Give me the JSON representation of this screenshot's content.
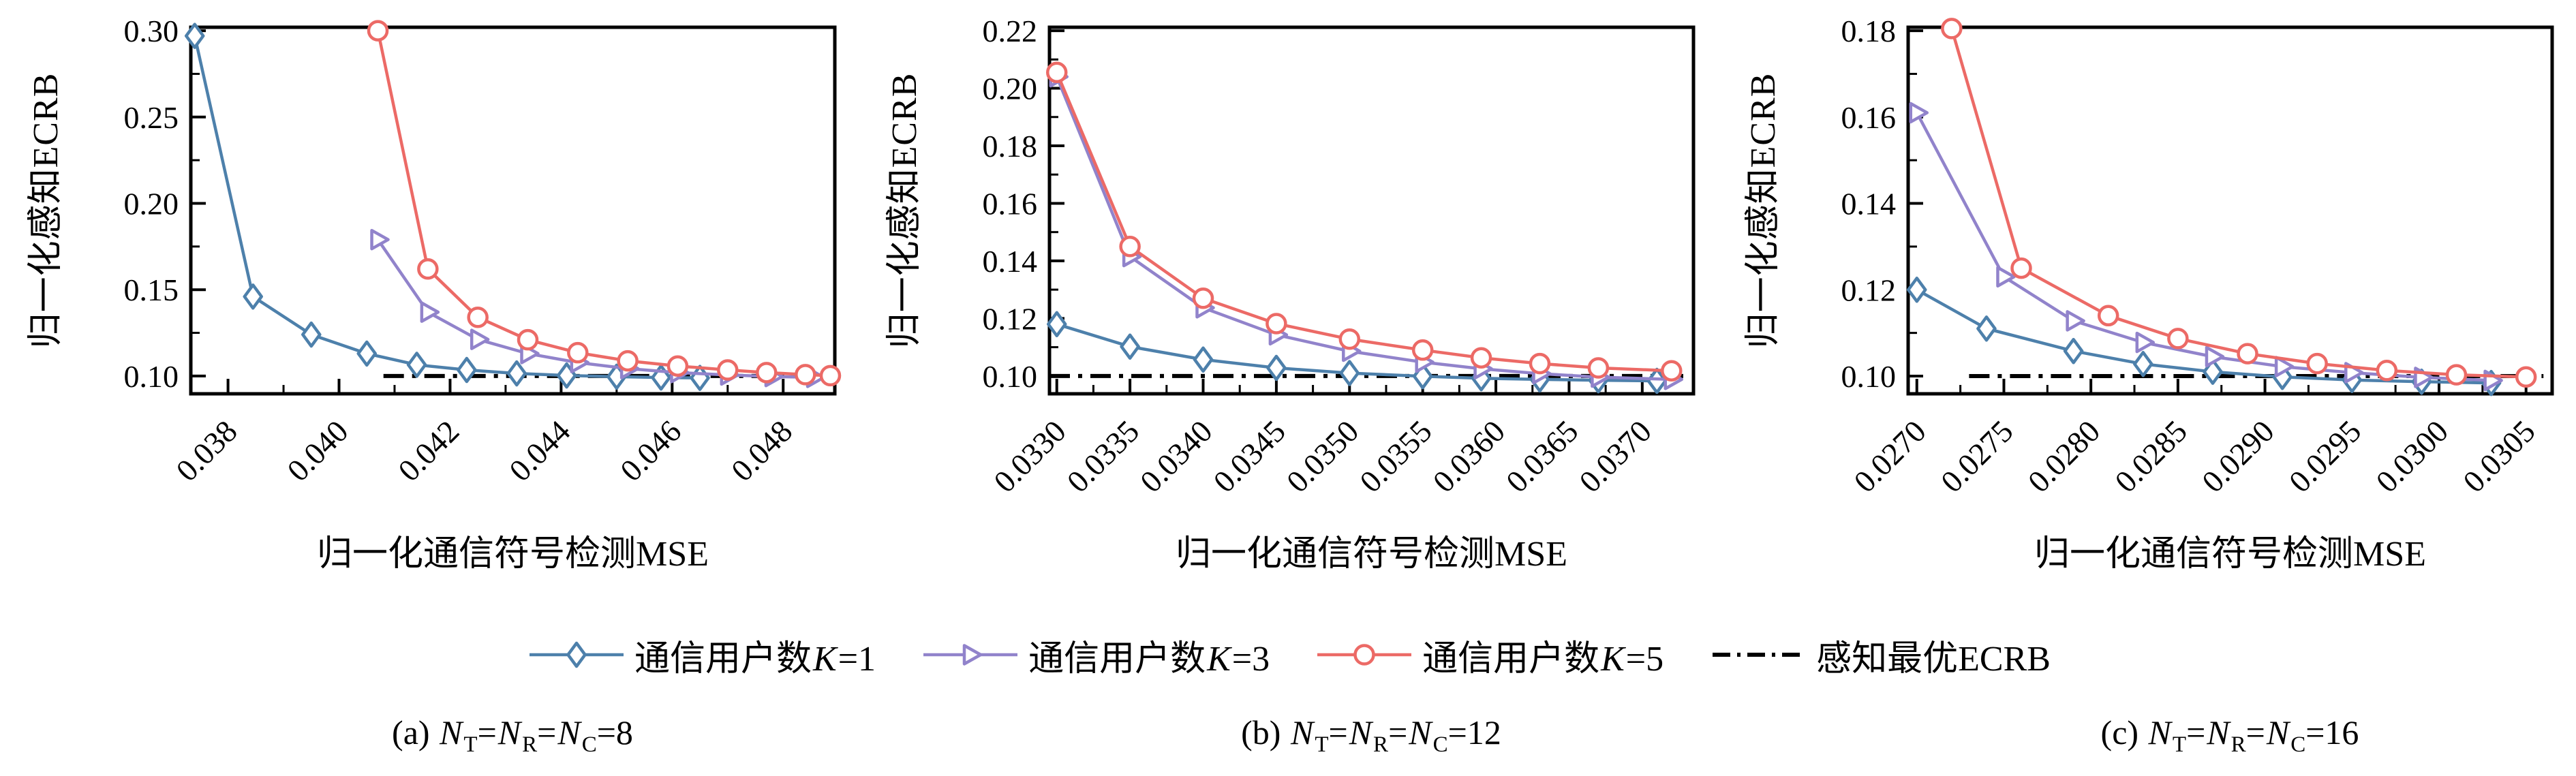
{
  "figure": {
    "ylabel": "归一化感知ECRB",
    "xlabel": "归一化通信符号检测MSE",
    "colors": {
      "k1": "#4d80ab",
      "k3": "#9183cb",
      "k5": "#ec6a66",
      "baseline": "#000000"
    },
    "legend": [
      {
        "id": "k1",
        "marker": "diamond",
        "color": "#4d80ab",
        "tokens": [
          {
            "t": "通信用户数"
          },
          {
            "i": "K"
          },
          {
            "t": "=1"
          }
        ]
      },
      {
        "id": "k3",
        "marker": "triangle-right",
        "color": "#9183cb",
        "tokens": [
          {
            "t": "通信用户数"
          },
          {
            "i": "K"
          },
          {
            "t": "=3"
          }
        ]
      },
      {
        "id": "k5",
        "marker": "circle",
        "color": "#ec6a66",
        "tokens": [
          {
            "t": "通信用户数"
          },
          {
            "i": "K"
          },
          {
            "t": "=5"
          }
        ]
      },
      {
        "id": "ecrb",
        "marker": "dashdot",
        "color": "#000000",
        "tokens": [
          {
            "t": "感知最优ECRB"
          }
        ]
      }
    ],
    "captions": [
      {
        "id": "a",
        "tokens": [
          {
            "t": "(a) "
          },
          {
            "i": "N"
          },
          {
            "s": "T"
          },
          {
            "t": "="
          },
          {
            "i": "N"
          },
          {
            "s": "R"
          },
          {
            "t": "="
          },
          {
            "i": "N"
          },
          {
            "s": "C"
          },
          {
            "t": "=8"
          }
        ]
      },
      {
        "id": "b",
        "tokens": [
          {
            "t": "(b) "
          },
          {
            "i": "N"
          },
          {
            "s": "T"
          },
          {
            "t": "="
          },
          {
            "i": "N"
          },
          {
            "s": "R"
          },
          {
            "t": "="
          },
          {
            "i": "N"
          },
          {
            "s": "C"
          },
          {
            "t": "=12"
          }
        ]
      },
      {
        "id": "c",
        "tokens": [
          {
            "t": "(c) "
          },
          {
            "i": "N"
          },
          {
            "s": "T"
          },
          {
            "t": "="
          },
          {
            "i": "N"
          },
          {
            "s": "R"
          },
          {
            "t": "="
          },
          {
            "i": "N"
          },
          {
            "s": "C"
          },
          {
            "t": "=16"
          }
        ]
      }
    ]
  },
  "chart_data": [
    {
      "type": "line",
      "title": "(a) NT=NR=NC=8",
      "xlabel": "归一化通信符号检测MSE",
      "ylabel": "归一化感知ECRB",
      "xlim": [
        0.03733,
        0.04893
      ],
      "ylim": [
        0.0897,
        0.302
      ],
      "xticks": [
        0.038,
        0.04,
        0.042,
        0.044,
        0.046,
        0.048
      ],
      "xtick_labels": [
        "0.038",
        "0.040",
        "0.042",
        "0.044",
        "0.046",
        "0.048"
      ],
      "yticks": [
        0.1,
        0.15,
        0.2,
        0.25,
        0.3
      ],
      "ytick_labels": [
        "0.10",
        "0.15",
        "0.20",
        "0.25",
        "0.30"
      ],
      "grid": false,
      "baseline": {
        "label": "感知最优ECRB",
        "y": 0.1,
        "x_start": 0.0408,
        "x_end": 0.0489
      },
      "series": [
        {
          "id": "k1",
          "name": "通信用户数K=1",
          "marker": "diamond",
          "color": "#4d80ab",
          "points": [
            [
              0.0374,
              0.297
            ],
            [
              0.03845,
              0.146
            ],
            [
              0.0395,
              0.124
            ],
            [
              0.0405,
              0.113
            ],
            [
              0.0414,
              0.1065
            ],
            [
              0.0423,
              0.1035
            ],
            [
              0.0432,
              0.1015
            ],
            [
              0.0441,
              0.1003
            ],
            [
              0.045,
              0.0996
            ],
            [
              0.0458,
              0.0991
            ],
            [
              0.0465,
              0.0989
            ]
          ]
        },
        {
          "id": "k3",
          "name": "通信用户数K=3",
          "marker": "triangle-right",
          "color": "#9183cb",
          "points": [
            [
              0.0407,
              0.179
            ],
            [
              0.0416,
              0.137
            ],
            [
              0.0425,
              0.1212
            ],
            [
              0.0434,
              0.113
            ],
            [
              0.0443,
              0.1078
            ],
            [
              0.0452,
              0.1043
            ],
            [
              0.0461,
              0.102
            ],
            [
              0.047,
              0.1006
            ],
            [
              0.0478,
              0.0997
            ],
            [
              0.04855,
              0.0992
            ]
          ]
        },
        {
          "id": "k5",
          "name": "通信用户数K=5",
          "marker": "circle",
          "color": "#ec6a66",
          "points": [
            [
              0.0407,
              0.3
            ],
            [
              0.0416,
              0.162
            ],
            [
              0.0425,
              0.134
            ],
            [
              0.0434,
              0.121
            ],
            [
              0.0443,
              0.1135
            ],
            [
              0.0452,
              0.1088
            ],
            [
              0.0461,
              0.1058
            ],
            [
              0.047,
              0.1035
            ],
            [
              0.0477,
              0.102
            ],
            [
              0.0484,
              0.1008
            ],
            [
              0.04885,
              0.1002
            ]
          ]
        }
      ]
    },
    {
      "type": "line",
      "title": "(b) NT=NR=NC=12",
      "xlabel": "归一化通信符号检测MSE",
      "ylabel": "归一化感知ECRB",
      "xlim": [
        0.03295,
        0.03735
      ],
      "ylim": [
        0.0938,
        0.2212
      ],
      "xticks": [
        0.033,
        0.0335,
        0.034,
        0.0345,
        0.035,
        0.0355,
        0.036,
        0.0365,
        0.037
      ],
      "xtick_labels": [
        "0.0330",
        "0.0335",
        "0.0340",
        "0.0345",
        "0.0350",
        "0.0355",
        "0.0360",
        "0.0365",
        "0.0370"
      ],
      "yticks": [
        0.1,
        0.12,
        0.14,
        0.16,
        0.18,
        0.2,
        0.22
      ],
      "ytick_labels": [
        "0.10",
        "0.12",
        "0.14",
        "0.16",
        "0.18",
        "0.20",
        "0.22"
      ],
      "grid": false,
      "baseline": {
        "label": "感知最优ECRB",
        "y": 0.1,
        "x_start": 0.03295,
        "x_end": 0.0373
      },
      "series": [
        {
          "id": "k1",
          "name": "通信用户数K=1",
          "marker": "diamond",
          "color": "#4d80ab",
          "points": [
            [
              0.033,
              0.118
            ],
            [
              0.0335,
              0.1102
            ],
            [
              0.034,
              0.1057
            ],
            [
              0.0345,
              0.1028
            ],
            [
              0.035,
              0.101
            ],
            [
              0.0355,
              0.0999
            ],
            [
              0.0359,
              0.0992
            ],
            [
              0.0363,
              0.0988
            ],
            [
              0.0367,
              0.0985
            ],
            [
              0.0371,
              0.0983
            ]
          ]
        },
        {
          "id": "k3",
          "name": "通信用户数K=3",
          "marker": "triangle-right",
          "color": "#9183cb",
          "points": [
            [
              0.033,
              0.204
            ],
            [
              0.0335,
              0.1415
            ],
            [
              0.034,
              0.1237
            ],
            [
              0.0345,
              0.1143
            ],
            [
              0.035,
              0.1086
            ],
            [
              0.0355,
              0.1048
            ],
            [
              0.0359,
              0.1025
            ],
            [
              0.0363,
              0.1008
            ],
            [
              0.0367,
              0.0996
            ],
            [
              0.0372,
              0.0988
            ]
          ]
        },
        {
          "id": "k5",
          "name": "通信用户数K=5",
          "marker": "circle",
          "color": "#ec6a66",
          "points": [
            [
              0.033,
              0.2055
            ],
            [
              0.0335,
              0.145
            ],
            [
              0.034,
              0.127
            ],
            [
              0.0345,
              0.1182
            ],
            [
              0.035,
              0.1128
            ],
            [
              0.0355,
              0.109
            ],
            [
              0.0359,
              0.1063
            ],
            [
              0.0363,
              0.1043
            ],
            [
              0.0367,
              0.1028
            ],
            [
              0.0372,
              0.1018
            ]
          ]
        }
      ]
    },
    {
      "type": "line",
      "title": "(c) NT=NR=NC=16",
      "xlabel": "归一化通信符号检测MSE",
      "ylabel": "归一化感知ECRB",
      "xlim": [
        0.02695,
        0.03065
      ],
      "ylim": [
        0.0959,
        0.1808
      ],
      "xticks": [
        0.027,
        0.0275,
        0.028,
        0.0285,
        0.029,
        0.0295,
        0.03,
        0.0305
      ],
      "xtick_labels": [
        "0.0270",
        "0.0275",
        "0.0280",
        "0.0285",
        "0.0290",
        "0.0295",
        "0.0300",
        "0.0305"
      ],
      "yticks": [
        0.1,
        0.12,
        0.14,
        0.16,
        0.18
      ],
      "ytick_labels": [
        "0.10",
        "0.12",
        "0.14",
        "0.16",
        "0.18"
      ],
      "grid": false,
      "baseline": {
        "label": "感知最优ECRB",
        "y": 0.1,
        "x_start": 0.0273,
        "x_end": 0.0306
      },
      "series": [
        {
          "id": "k1",
          "name": "通信用户数K=1",
          "marker": "diamond",
          "color": "#4d80ab",
          "points": [
            [
              0.027,
              0.12
            ],
            [
              0.0274,
              0.111
            ],
            [
              0.0279,
              0.1058
            ],
            [
              0.0283,
              0.1028
            ],
            [
              0.0287,
              0.101
            ],
            [
              0.0291,
              0.0998
            ],
            [
              0.0295,
              0.0991
            ],
            [
              0.0299,
              0.0987
            ],
            [
              0.0303,
              0.0984
            ]
          ]
        },
        {
          "id": "k3",
          "name": "通信用户数K=3",
          "marker": "triangle-right",
          "color": "#9183cb",
          "points": [
            [
              0.027,
              0.161
            ],
            [
              0.0275,
              0.123
            ],
            [
              0.0279,
              0.1128
            ],
            [
              0.0283,
              0.1078
            ],
            [
              0.0287,
              0.1045
            ],
            [
              0.0291,
              0.1022
            ],
            [
              0.0295,
              0.1008
            ],
            [
              0.0299,
              0.0997
            ],
            [
              0.0303,
              0.099
            ]
          ]
        },
        {
          "id": "k5",
          "name": "通信用户数K=5",
          "marker": "circle",
          "color": "#ec6a66",
          "points": [
            [
              0.0272,
              0.1805
            ],
            [
              0.0276,
              0.125
            ],
            [
              0.0281,
              0.114
            ],
            [
              0.0285,
              0.1087
            ],
            [
              0.0289,
              0.1052
            ],
            [
              0.0293,
              0.1029
            ],
            [
              0.0297,
              0.1013
            ],
            [
              0.0301,
              0.1003
            ],
            [
              0.0305,
              0.0998
            ]
          ]
        }
      ]
    }
  ]
}
